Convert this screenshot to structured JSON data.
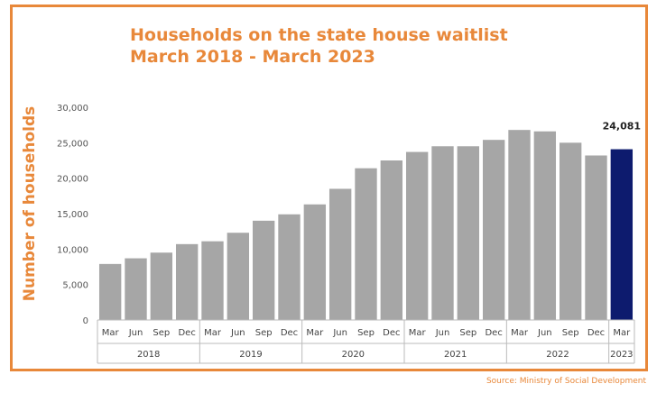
{
  "title": {
    "line1": "Households on the state house waitlist",
    "line2": "March 2018 - March 2023"
  },
  "source": "Source: Ministry of Social Development",
  "colors": {
    "accent": "#e8883a",
    "bar": "#a6a6a6",
    "highlight": "#0d1b6e"
  },
  "chart_data": {
    "type": "bar",
    "ylabel": "Number of households",
    "ylim": [
      0,
      30000
    ],
    "yticks": [
      0,
      5000,
      10000,
      15000,
      20000,
      25000,
      30000
    ],
    "ytick_labels": [
      "0",
      "5,000",
      "10,000",
      "15,000",
      "20,000",
      "25,000",
      "30,000"
    ],
    "categories": [
      "Mar",
      "Jun",
      "Sep",
      "Dec",
      "Mar",
      "Jun",
      "Sep",
      "Dec",
      "Mar",
      "Jun",
      "Sep",
      "Dec",
      "Mar",
      "Jun",
      "Sep",
      "Dec",
      "Mar",
      "Jun",
      "Sep",
      "Dec",
      "Mar"
    ],
    "years": [
      {
        "label": "2018",
        "span": 4
      },
      {
        "label": "2019",
        "span": 4
      },
      {
        "label": "2020",
        "span": 4
      },
      {
        "label": "2021",
        "span": 4
      },
      {
        "label": "2022",
        "span": 4
      },
      {
        "label": "2023",
        "span": 1
      }
    ],
    "values": [
      7900,
      8700,
      9500,
      10700,
      11100,
      12300,
      14000,
      14900,
      16300,
      18500,
      21400,
      22500,
      23700,
      24500,
      24500,
      25400,
      26800,
      26600,
      25000,
      23200,
      24081
    ],
    "highlight_index": 20,
    "data_labels": [
      {
        "index": 20,
        "text": "24,081"
      }
    ]
  }
}
